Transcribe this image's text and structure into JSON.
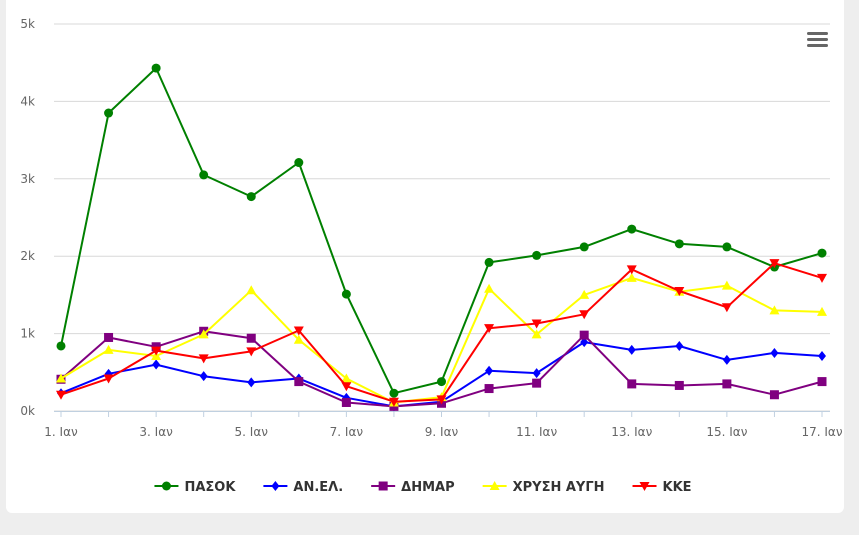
{
  "chart_data": {
    "type": "line",
    "title": "",
    "xlabel": "",
    "ylabel": "",
    "x": [
      "1. Ιαν",
      "2. Ιαν",
      "3. Ιαν",
      "4. Ιαν",
      "5. Ιαν",
      "6. Ιαν",
      "7. Ιαν",
      "8. Ιαν",
      "9. Ιαν",
      "10. Ιαν",
      "11. Ιαν",
      "12. Ιαν",
      "13. Ιαν",
      "14. Ιαν",
      "15. Ιαν",
      "16. Ιαν",
      "17. Ιαν"
    ],
    "x_tick_labels": [
      "1. Ιαν",
      "3. Ιαν",
      "5. Ιαν",
      "7. Ιαν",
      "9. Ιαν",
      "11. Ιαν",
      "13. Ιαν",
      "15. Ιαν",
      "17. Ιαν"
    ],
    "y_tick_labels": [
      "0k",
      "1k",
      "2k",
      "3k",
      "4k",
      "5k"
    ],
    "ylim": [
      0,
      5000
    ],
    "grid": "horizontal",
    "legend_position": "bottom",
    "series": [
      {
        "name": "ΠΑΣΟΚ",
        "color": "#008000",
        "marker": "circle",
        "values": [
          840,
          3850,
          4430,
          3050,
          2770,
          3210,
          1510,
          230,
          380,
          1920,
          2010,
          2120,
          2350,
          2160,
          2120,
          1860,
          2040
        ]
      },
      {
        "name": "ΑΝ.ΕΛ.",
        "color": "#0000ff",
        "marker": "diamond",
        "values": [
          230,
          480,
          600,
          450,
          370,
          420,
          170,
          60,
          120,
          520,
          490,
          890,
          790,
          840,
          660,
          750,
          710
        ]
      },
      {
        "name": "ΔΗΜΑΡ",
        "color": "#800080",
        "marker": "square",
        "values": [
          410,
          950,
          830,
          1030,
          940,
          380,
          110,
          60,
          100,
          290,
          360,
          980,
          350,
          330,
          350,
          210,
          380
        ]
      },
      {
        "name": "ΧΡΥΣΗ ΑΥΓΗ",
        "color": "#ffff00",
        "marker": "triangle",
        "values": [
          420,
          790,
          710,
          990,
          1560,
          920,
          420,
          110,
          180,
          1580,
          990,
          1500,
          1720,
          1540,
          1620,
          1300,
          1280
        ]
      },
      {
        "name": "ΚΚΕ",
        "color": "#ff0000",
        "marker": "triangle-down",
        "values": [
          210,
          420,
          780,
          680,
          770,
          1040,
          320,
          120,
          150,
          1070,
          1130,
          1250,
          1830,
          1550,
          1340,
          1910,
          1720
        ]
      }
    ]
  }
}
